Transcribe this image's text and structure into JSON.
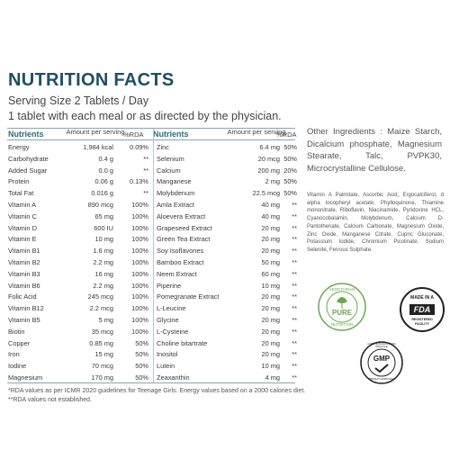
{
  "title": "NUTRITION FACTS",
  "serving": "Serving Size 2 Tablets / Day",
  "instructions": "1 tablet with each meal or as directed by the physician.",
  "headers": {
    "nutrients": "Nutrients",
    "amount": "Amount per serving",
    "rda": "%RDA"
  },
  "left_rows": [
    {
      "name": "Energy",
      "amount": "1,984 kcal",
      "rda": "0.09%"
    },
    {
      "name": "Carbohydrate",
      "amount": "0.4 g",
      "rda": "**"
    },
    {
      "name": "Added Sugar",
      "amount": "0.0 g",
      "rda": "**"
    },
    {
      "name": "Protein",
      "amount": "0.06 g",
      "rda": "0.13%"
    },
    {
      "name": "Total Fat",
      "amount": "0.016 g",
      "rda": "**"
    },
    {
      "name": "Vitamin A",
      "amount": "890 mcg",
      "rda": "100%"
    },
    {
      "name": "Vitamin C",
      "amount": "65 mg",
      "rda": "100%"
    },
    {
      "name": "Vitamin D",
      "amount": "600 IU",
      "rda": "100%"
    },
    {
      "name": "Vitamin E",
      "amount": "10 mg",
      "rda": "100%"
    },
    {
      "name": "Vitamin B1",
      "amount": "1.6 mg",
      "rda": "100%"
    },
    {
      "name": "Vitamin B2",
      "amount": "2.2 mg",
      "rda": "100%"
    },
    {
      "name": "Vitamin B3",
      "amount": "16 mg",
      "rda": "100%"
    },
    {
      "name": "Vitamin B6",
      "amount": "2.2 mg",
      "rda": "100%"
    },
    {
      "name": "Folic Acid",
      "amount": "245 mcg",
      "rda": "100%"
    },
    {
      "name": "Vitamin B12",
      "amount": "2.2 mcg",
      "rda": "100%"
    },
    {
      "name": "Vitamin B5",
      "amount": "5 mg",
      "rda": "100%"
    },
    {
      "name": "Biotin",
      "amount": "35 mcg",
      "rda": "100%"
    },
    {
      "name": "Copper",
      "amount": "0.85 mg",
      "rda": "50%"
    },
    {
      "name": "Iron",
      "amount": "15 mg",
      "rda": "50%"
    },
    {
      "name": "Iodine",
      "amount": "70 mcg",
      "rda": "50%"
    },
    {
      "name": "Magnesium",
      "amount": "170 mg",
      "rda": "50%"
    }
  ],
  "right_rows": [
    {
      "name": "Zinc",
      "amount": "6.4 mg",
      "rda": "50%"
    },
    {
      "name": "Selenium",
      "amount": "20 mcg",
      "rda": "50%"
    },
    {
      "name": "Calcium",
      "amount": "200 mg",
      "rda": "20%"
    },
    {
      "name": "Manganese",
      "amount": "2 mg",
      "rda": "50%"
    },
    {
      "name": "Molybdenum",
      "amount": "22.5 mcg",
      "rda": "50%"
    },
    {
      "name": "Amla Extract",
      "amount": "40 mg",
      "rda": "**"
    },
    {
      "name": "Aloevera Extract",
      "amount": "40 mg",
      "rda": "**"
    },
    {
      "name": "Grapeseed Extract",
      "amount": "20 mg",
      "rda": "**"
    },
    {
      "name": "Green Tea Extract",
      "amount": "20 mg",
      "rda": "**"
    },
    {
      "name": "Soy Isoflavones",
      "amount": "20 mg",
      "rda": "**"
    },
    {
      "name": "Bamboo Extract",
      "amount": "50 mg",
      "rda": "**"
    },
    {
      "name": "Neem Extract",
      "amount": "60 mg",
      "rda": "**"
    },
    {
      "name": "Piperine",
      "amount": "10 mg",
      "rda": "**"
    },
    {
      "name": "Pomegranate Extract",
      "amount": "20 mg",
      "rda": "**"
    },
    {
      "name": "L-Leucine",
      "amount": "20 mg",
      "rda": "**"
    },
    {
      "name": "Glycine",
      "amount": "20 mg",
      "rda": "**"
    },
    {
      "name": "L-Cysteine",
      "amount": "20 mg",
      "rda": "**"
    },
    {
      "name": "Choline bitartrate",
      "amount": "20 mg",
      "rda": "**"
    },
    {
      "name": "Inositol",
      "amount": "20 mg",
      "rda": "**"
    },
    {
      "name": "Lutein",
      "amount": "10 mg",
      "rda": "**"
    },
    {
      "name": "Zeaxanthin",
      "amount": "4 mg",
      "rda": "**"
    }
  ],
  "other_ingredients": "Other Ingredients : Maize Starch, Dicalcium phosphate, Magnesium Stearate, Talc, PVPK30, Microcrystalline Cellulose.",
  "ingredients_list": "Vitamin A Palmitate, Ascorbic Acid, Ergocalciferol, d alpha tocopheryl acetate, Phylloquinone, Thiamine mononitrate, Riboflavin, Niacinamide, Pyridoxine HCL, Cyanocobalamin, Molybdenum, Calcium D-Pantothenate, Calcium Carbonate, Magnesium Oxide, Zinc Oxide, Manganese Citrate, Cupric Gluconate, Potassium Iodide, Chromium Picolinate, Sodium Selenite, Ferrous Sulphate.",
  "footnotes": [
    "*RDA values as per ICMR 2020 guidelines for Teenage Girls. Energy values based on a 2000 calories diet.",
    "**RDA values not established."
  ],
  "badges": {
    "vegetarian_top": "VEGETARIAN",
    "vegetarian_center": "PURE",
    "vegetarian_bottom": "NUTRITION",
    "fda_top": "MADE IN A",
    "fda_logo": "FDA",
    "fda_bottom": "REGISTERED FACILITY",
    "gmp_label": "GMP",
    "gmp_ring": "GOOD MANUFACTURING PRACTICE",
    "gmp_sub": "PRODUCT APPROVED"
  },
  "colors": {
    "title": "#1f4f63",
    "header": "#2e6a7f",
    "badge_green": "#6aa84f",
    "divider": "#8aa5b3"
  }
}
